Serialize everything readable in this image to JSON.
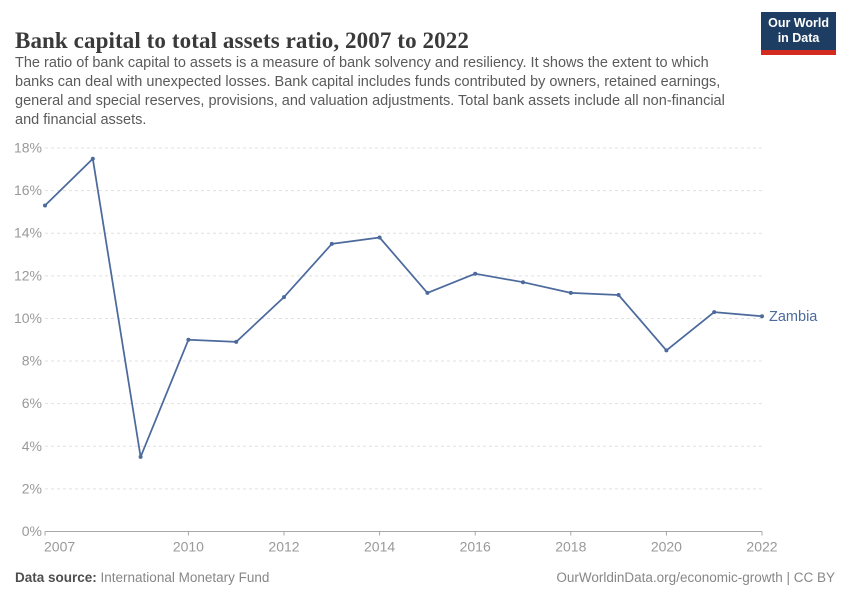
{
  "header": {
    "title": "Bank capital to total assets ratio, 2007 to 2022",
    "subtitle_lines": [
      "The ratio of bank capital to assets is a measure of bank solvency and resiliency. It shows the extent to which",
      "banks can deal with unexpected losses. Bank capital includes funds contributed by owners, retained earnings,",
      "general and special reserves, provisions, and valuation adjustments. Total bank assets include all non-financial",
      "and financial assets."
    ],
    "logo": {
      "line1": "Our World",
      "line2": "in Data",
      "bg_color": "#1D3D63",
      "stripe_color": "#D42B21"
    }
  },
  "chart_data": {
    "type": "line",
    "title": "Bank capital to total assets ratio, 2007 to 2022",
    "unit": "%",
    "x": [
      2007,
      2008,
      2009,
      2010,
      2011,
      2012,
      2013,
      2014,
      2015,
      2016,
      2017,
      2018,
      2019,
      2020,
      2021,
      2022
    ],
    "series": [
      {
        "name": "Zambia",
        "color": "#4C6A9C",
        "values": [
          15.3,
          17.5,
          3.5,
          9.0,
          8.9,
          11.0,
          13.5,
          13.8,
          11.2,
          12.1,
          11.7,
          11.2,
          11.1,
          8.5,
          10.3,
          10.1
        ]
      }
    ],
    "xlim": [
      2007,
      2022
    ],
    "ylim": [
      0,
      18
    ],
    "x_tick_labels": [
      2007,
      2010,
      2012,
      2014,
      2016,
      2018,
      2020,
      2022
    ],
    "y_tick_labels": [
      "0%",
      "2%",
      "4%",
      "6%",
      "8%",
      "10%",
      "12%",
      "14%",
      "16%",
      "18%"
    ],
    "grid": "horizontal-dashed",
    "legend": "end-of-line-label",
    "colors": {
      "line": "#4C6A9C",
      "grid": "#E0E0E0",
      "axis": "#A8A8A8",
      "tick_text": "#999999"
    }
  },
  "footer": {
    "datasource_label": "Data source:",
    "datasource_value": " International Monetary Fund",
    "attribution": "OurWorldinData.org/economic-growth | CC BY"
  }
}
